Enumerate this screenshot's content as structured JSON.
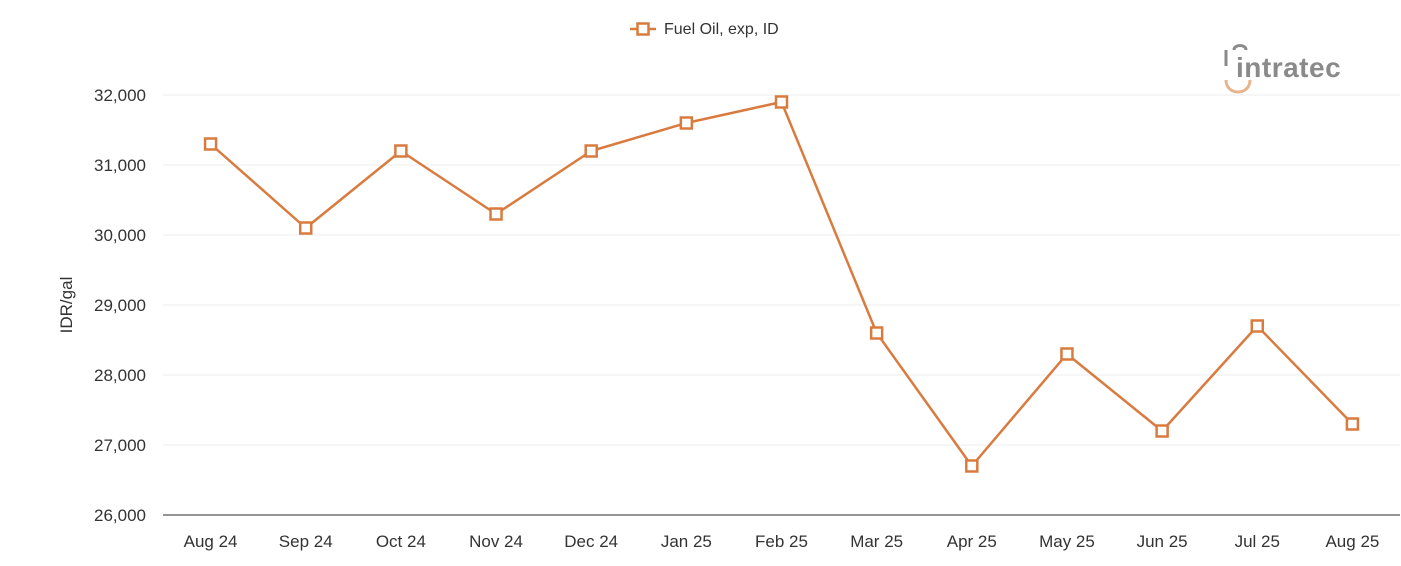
{
  "chart_data": {
    "type": "line",
    "categories": [
      "Aug 24",
      "Sep 24",
      "Oct 24",
      "Nov 24",
      "Dec 24",
      "Jan 25",
      "Feb 25",
      "Mar 25",
      "Apr 25",
      "May 25",
      "Jun 25",
      "Jul 25",
      "Aug 25"
    ],
    "series": [
      {
        "name": "Fuel Oil, exp, ID",
        "values": [
          31300,
          30100,
          31200,
          30300,
          31200,
          31600,
          31900,
          28600,
          26700,
          28300,
          27200,
          28700,
          27300
        ]
      }
    ],
    "ylabel": "IDR/gal",
    "ylim": [
      26000,
      32000
    ],
    "yticks": [
      26000,
      27000,
      28000,
      29000,
      30000,
      31000,
      32000
    ],
    "ytick_labels": [
      "26,000",
      "27,000",
      "28,000",
      "29,000",
      "30,000",
      "31,000",
      "32,000"
    ],
    "grid": true,
    "legend_position": "top-center",
    "color": "#D97B3F"
  },
  "branding": {
    "logo_text": "intratec",
    "logo_color": "#8a8a8a",
    "logo_accent": "#E8B48C"
  }
}
